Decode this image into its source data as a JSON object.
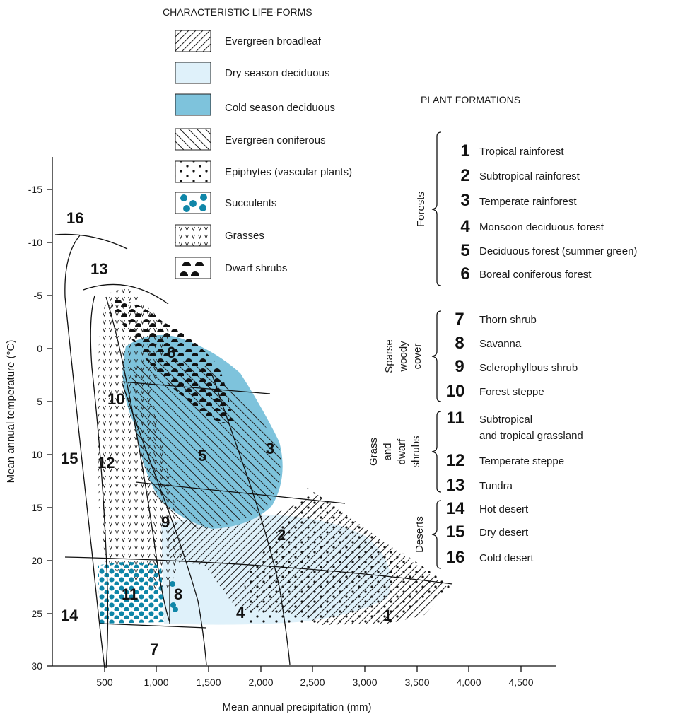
{
  "legend": {
    "title": "CHARACTERISTIC LIFE-FORMS",
    "items": [
      {
        "key": "evergreen-broadleaf",
        "label": "Evergreen broadleaf"
      },
      {
        "key": "dry-season-deciduous",
        "label": "Dry season deciduous"
      },
      {
        "key": "cold-season-deciduous",
        "label": "Cold season deciduous"
      },
      {
        "key": "evergreen-coniferous",
        "label": "Evergreen coniferous"
      },
      {
        "key": "epiphytes",
        "label": "Epiphytes (vascular plants)"
      },
      {
        "key": "succulents",
        "label": "Succulents"
      },
      {
        "key": "grasses",
        "label": "Grasses"
      },
      {
        "key": "dwarf-shrubs",
        "label": "Dwarf shrubs"
      }
    ]
  },
  "colors": {
    "dry_season": "#dff1fa",
    "cold_season": "#7ec3dc",
    "succulent": "#0f86a8"
  },
  "formations": {
    "title": "PLANT FORMATIONS",
    "groups": [
      {
        "name": "Forests",
        "items": [
          {
            "n": "1",
            "label": "Tropical rainforest"
          },
          {
            "n": "2",
            "label": "Subtropical rainforest"
          },
          {
            "n": "3",
            "label": "Temperate rainforest"
          },
          {
            "n": "4",
            "label": "Monsoon deciduous forest"
          },
          {
            "n": "5",
            "label": "Deciduous forest (summer green)"
          },
          {
            "n": "6",
            "label": "Boreal coniferous forest"
          }
        ]
      },
      {
        "name_lines": [
          "Sparse",
          "woody",
          "cover"
        ],
        "items": [
          {
            "n": "7",
            "label": "Thorn shrub"
          },
          {
            "n": "8",
            "label": "Savanna"
          },
          {
            "n": "9",
            "label": "Sclerophyllous shrub"
          },
          {
            "n": "10",
            "label": "Forest steppe"
          }
        ]
      },
      {
        "name_lines": [
          "Grass",
          "and",
          "dwarf",
          "shrubs"
        ],
        "items": [
          {
            "n": "11",
            "label_lines": [
              "Subtropical",
              "and tropical grassland"
            ]
          },
          {
            "n": "12",
            "label": "Temperate steppe"
          },
          {
            "n": "13",
            "label": "Tundra"
          }
        ]
      },
      {
        "name": "Deserts",
        "items": [
          {
            "n": "14",
            "label": "Hot desert"
          },
          {
            "n": "15",
            "label": "Dry desert"
          },
          {
            "n": "16",
            "label": "Cold desert"
          }
        ]
      }
    ]
  },
  "axes": {
    "x_label": "Mean annual precipitation (mm)",
    "y_label": "Mean annual temperature (°C)",
    "x_ticks": [
      "500",
      "1,000",
      "1,500",
      "2,000",
      "2,500",
      "3,000",
      "3,500",
      "4,000",
      "4,500"
    ],
    "y_ticks": [
      "-15",
      "-10",
      "-5",
      "0",
      "5",
      "10",
      "15",
      "20",
      "25",
      "30"
    ]
  },
  "zones": {
    "z1": "1",
    "z2": "2",
    "z3": "3",
    "z4": "4",
    "z5": "5",
    "z6": "6",
    "z7": "7",
    "z8": "8",
    "z9": "9",
    "z10": "10",
    "z11": "11",
    "z12": "12",
    "z13": "13",
    "z14": "14",
    "z15": "15",
    "z16": "16"
  }
}
